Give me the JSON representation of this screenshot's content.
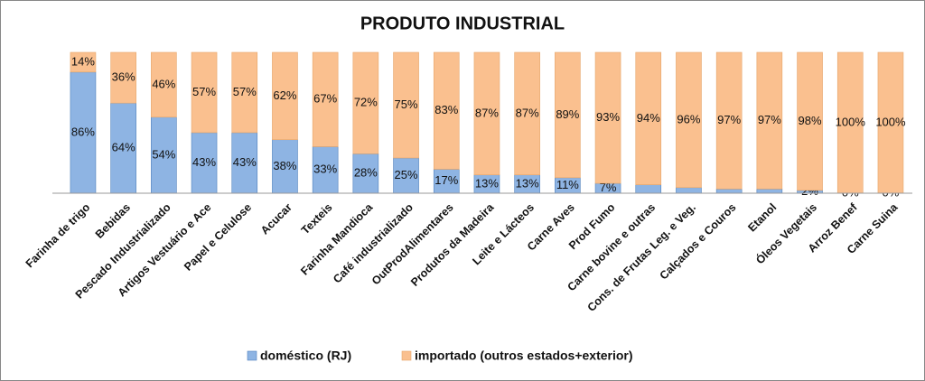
{
  "chart_data": {
    "type": "stacked_bar",
    "title": "PRODUTO INDUSTRIAL",
    "categories": [
      "Farinha de trigo",
      "Bebidas",
      "Pescado Industrializado",
      "Artigos Vestuário e Ace",
      "Papel e Celulose",
      "Acucar",
      "Texteis",
      "Farinha Mandioca",
      "Café industrializado",
      "OutProdAlimentares",
      "Produtos da Madeira",
      "Leite e Lácteos",
      "Carne Aves",
      "Prod Fumo",
      "Carne bovine e outras",
      "Cons. de Frutas Leg. e Veg.",
      "Calçados e Couros",
      "Etanol",
      "Óleos Vegetais",
      "Arroz Benef",
      "Carne Suina"
    ],
    "series": [
      {
        "name": "doméstico (RJ)",
        "color": "#8eb4e3",
        "values": [
          86,
          64,
          54,
          43,
          43,
          38,
          33,
          28,
          25,
          17,
          13,
          13,
          11,
          7,
          6,
          4,
          3,
          3,
          2,
          0,
          0
        ],
        "value_labels": [
          "86%",
          "64%",
          "54%",
          "43%",
          "43%",
          "38%",
          "33%",
          "28%",
          "25%",
          "17%",
          "13%",
          "13%",
          "11%",
          "7%",
          null,
          null,
          null,
          null,
          "2%",
          "0%",
          "0%"
        ]
      },
      {
        "name": "importado (outros estados+exterior)",
        "color": "#fac08f",
        "values": [
          14,
          36,
          46,
          57,
          57,
          62,
          67,
          72,
          75,
          83,
          87,
          87,
          89,
          93,
          94,
          96,
          97,
          97,
          98,
          100,
          100
        ],
        "value_labels": [
          "14%",
          "36%",
          "46%",
          "57%",
          "57%",
          "62%",
          "67%",
          "72%",
          "75%",
          "83%",
          "87%",
          "87%",
          "89%",
          "93%",
          "94%",
          "96%",
          "97%",
          "97%",
          "98%",
          "100%",
          "100%"
        ]
      }
    ],
    "ylim": [
      0,
      100
    ]
  }
}
